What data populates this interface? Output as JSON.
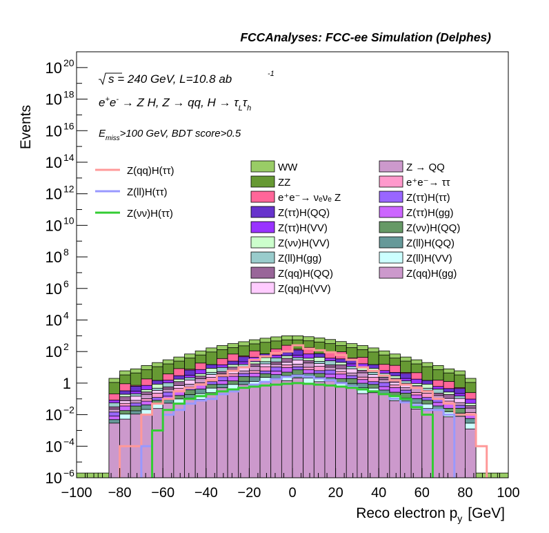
{
  "chart_data": {
    "type": "area",
    "title": "FCCAnalyses: FCC-ee Simulation (Delphes)",
    "xlabel": "Reco electron p",
    "xlabel_subscript": "y",
    "xlabel_unit": "[GeV]",
    "ylabel": "Events",
    "xlim": [
      -100,
      100
    ],
    "ylim": [
      1e-06,
      1e+21
    ],
    "y_scale": "log",
    "grid": false,
    "x_ticks": [
      -100,
      -80,
      -60,
      -40,
      -20,
      0,
      20,
      40,
      60,
      80,
      100
    ],
    "x_tick_labels": [
      "−100",
      "−80",
      "−60",
      "−40",
      "−20",
      "0",
      "20",
      "40",
      "60",
      "80",
      "100"
    ],
    "y_ticks": [
      {
        "value": 1e-06,
        "base": "10",
        "exp": "−6"
      },
      {
        "value": 0.0001,
        "base": "10",
        "exp": "−4"
      },
      {
        "value": 0.01,
        "base": "10",
        "exp": "−2"
      },
      {
        "value": 1,
        "base": "1",
        "exp": ""
      },
      {
        "value": 100.0,
        "base": "10",
        "exp": "2"
      },
      {
        "value": 10000.0,
        "base": "10",
        "exp": "4"
      },
      {
        "value": 1000000.0,
        "base": "10",
        "exp": "6"
      },
      {
        "value": 100000000.0,
        "base": "10",
        "exp": "8"
      },
      {
        "value": 10000000000.0,
        "base": "10",
        "exp": "10"
      },
      {
        "value": 1000000000000.0,
        "base": "10",
        "exp": "12"
      },
      {
        "value": 100000000000000.0,
        "base": "10",
        "exp": "14"
      },
      {
        "value": 1e+16,
        "base": "10",
        "exp": "16"
      },
      {
        "value": 1e+18,
        "base": "10",
        "exp": "18"
      },
      {
        "value": 1e+20,
        "base": "10",
        "exp": "20"
      }
    ],
    "annotations": [
      {
        "id": "energy",
        "text": "√s = 240 GeV, L=10.8 ab",
        "sup": "-1"
      },
      {
        "id": "process",
        "text": "e⁺e⁻ → Z H, Z → qq, H → τₗτₕ"
      },
      {
        "id": "cuts",
        "text": "E_miss>100 GeV, BDT score>0.5"
      }
    ],
    "bin_edges": [
      -100,
      -95,
      -90,
      -85,
      -80,
      -75,
      -70,
      -65,
      -60,
      -55,
      -50,
      -45,
      -40,
      -35,
      -30,
      -25,
      -20,
      -15,
      -10,
      -5,
      0,
      5,
      10,
      15,
      20,
      25,
      30,
      35,
      40,
      45,
      50,
      55,
      60,
      65,
      70,
      75,
      80,
      85,
      90,
      95,
      100
    ],
    "stack_total": [
      2e-06,
      2e-06,
      2e-06,
      2,
      6,
      8,
      13,
      20,
      30,
      45,
      70,
      110,
      170,
      240,
      320,
      420,
      560,
      700,
      850,
      1000,
      1000,
      870,
      730,
      580,
      430,
      320,
      240,
      170,
      110,
      70,
      45,
      30,
      20,
      13,
      8,
      6,
      2,
      2e-06,
      2e-06,
      2e-06
    ],
    "backgrounds": [
      {
        "name": "WW",
        "color": "#99cc66"
      },
      {
        "name": "ZZ",
        "color": "#669933"
      },
      {
        "name": "e⁺e⁻→ νₑνₑ Z",
        "color": "#ff6699"
      },
      {
        "name": "Z(ττ)H(QQ)",
        "color": "#6633cc"
      },
      {
        "name": "Z(ττ)H(VV)",
        "color": "#9933ff"
      },
      {
        "name": "Z(νν)H(VV)",
        "color": "#ccffcc"
      },
      {
        "name": "Z(ll)H(gg)",
        "color": "#99cccc"
      },
      {
        "name": "Z(qq)H(QQ)",
        "color": "#996699"
      },
      {
        "name": "Z(qq)H(VV)",
        "color": "#ffccff"
      },
      {
        "name": "Z → QQ",
        "color": "#cc99cc"
      },
      {
        "name": "e⁺e⁻→ ττ",
        "color": "#ff99cc"
      },
      {
        "name": "Z(ττ)H(ττ)",
        "color": "#9966ff"
      },
      {
        "name": "Z(ττ)H(gg)",
        "color": "#cc66ff"
      },
      {
        "name": "Z(νν)H(QQ)",
        "color": "#669966"
      },
      {
        "name": "Z(ll)H(QQ)",
        "color": "#669999"
      },
      {
        "name": "Z(ll)H(VV)",
        "color": "#ccffff"
      },
      {
        "name": "Z(qq)H(gg)",
        "color": "#cc99cc"
      }
    ],
    "signals": [
      {
        "name": "Z(qq)H(ττ)",
        "color": "#ff9999",
        "values": [
          1e-07,
          1e-07,
          1e-07,
          1e-07,
          0.0001,
          0.0001,
          0.01,
          0.05,
          0.1,
          0.3,
          0.5,
          0.8,
          1.5,
          3,
          6,
          10,
          30,
          50,
          80,
          100,
          250,
          150,
          120,
          90,
          60,
          30,
          10,
          6,
          3,
          1.5,
          0.8,
          0.5,
          0.3,
          0.1,
          0.05,
          0.01,
          0.01,
          0.0001,
          1e-07,
          1e-07
        ]
      },
      {
        "name": "Z(ll)H(ττ)",
        "color": "#9999ff",
        "values": [
          1e-07,
          1e-07,
          1e-07,
          1e-07,
          1e-07,
          1e-07,
          0.0001,
          0.001,
          0.01,
          0.02,
          0.05,
          0.08,
          0.1,
          0.2,
          0.3,
          0.5,
          0.8,
          1.2,
          1.8,
          2.5,
          3,
          2.5,
          2,
          1.5,
          1,
          0.6,
          0.4,
          0.3,
          0.2,
          0.1,
          0.06,
          0.04,
          0.02,
          0.02,
          0.01,
          1e-07,
          1e-07,
          1e-07,
          1e-07,
          1e-07
        ]
      },
      {
        "name": "Z(νν)H(ττ)",
        "color": "#33cc33",
        "values": [
          1e-07,
          1e-07,
          1e-07,
          1e-07,
          1e-07,
          1e-07,
          1e-07,
          0.001,
          0.02,
          0.05,
          0.1,
          0.15,
          0.2,
          0.3,
          0.4,
          0.5,
          0.6,
          0.7,
          0.8,
          0.9,
          1,
          0.9,
          0.8,
          0.7,
          0.6,
          0.5,
          0.4,
          0.3,
          0.2,
          0.15,
          0.1,
          0.03,
          0.01,
          1e-07,
          1e-07,
          1e-07,
          1e-07,
          1e-07,
          1e-07,
          1e-07
        ]
      }
    ]
  }
}
